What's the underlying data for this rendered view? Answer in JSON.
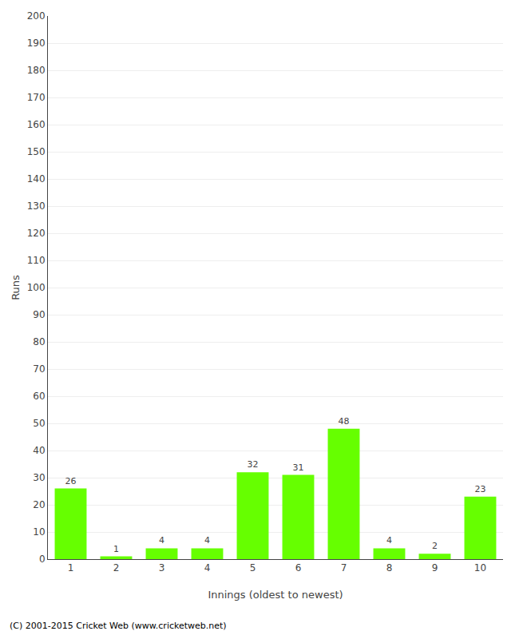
{
  "chart_data": {
    "type": "bar",
    "categories": [
      "1",
      "2",
      "3",
      "4",
      "5",
      "6",
      "7",
      "8",
      "9",
      "10"
    ],
    "values": [
      26,
      1,
      4,
      4,
      32,
      31,
      48,
      4,
      2,
      23
    ],
    "color": "#66ff00",
    "xlabel": "Innings (oldest to newest)",
    "ylabel": "Runs",
    "ylim": [
      0,
      200
    ],
    "yticks": [
      0,
      10,
      20,
      30,
      40,
      50,
      60,
      70,
      80,
      90,
      100,
      110,
      120,
      130,
      140,
      150,
      160,
      170,
      180,
      190,
      200
    ],
    "grid": true,
    "data_labels": true,
    "annotations": [
      "(C) 2001-2015 Cricket Web (www.cricketweb.net)"
    ]
  }
}
